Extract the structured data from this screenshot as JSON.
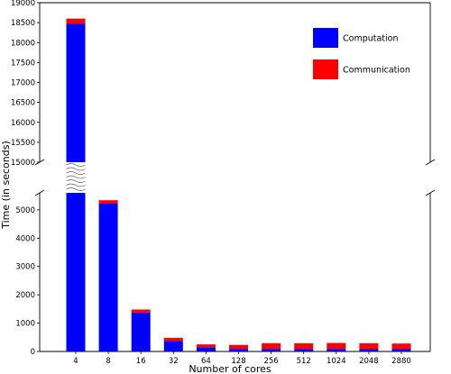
{
  "chart_data": {
    "type": "bar",
    "stacked": true,
    "broken_y_axis": true,
    "categories": [
      "4",
      "8",
      "16",
      "32",
      "64",
      "128",
      "256",
      "512",
      "1024",
      "2048",
      "2880"
    ],
    "series": [
      {
        "name": "Computation",
        "color": "#0000ff",
        "values": [
          18470,
          5230,
          1370,
          370,
          150,
          90,
          90,
          90,
          90,
          80,
          80
        ]
      },
      {
        "name": "Communication",
        "color": "#ff0000",
        "values": [
          130,
          110,
          110,
          110,
          100,
          140,
          200,
          200,
          210,
          210,
          200
        ]
      }
    ],
    "xlabel": "Number of cores",
    "ylabel": "Time (in seconds)",
    "y_segments": [
      {
        "ylim": [
          0,
          5600
        ],
        "ticks": [
          0,
          1000,
          2000,
          3000,
          4000,
          5000
        ]
      },
      {
        "ylim": [
          15000,
          19000
        ],
        "ticks": [
          15000,
          15500,
          16000,
          16500,
          17000,
          17500,
          18000,
          18500,
          19000
        ]
      }
    ],
    "legend": {
      "position": "top-right"
    }
  }
}
